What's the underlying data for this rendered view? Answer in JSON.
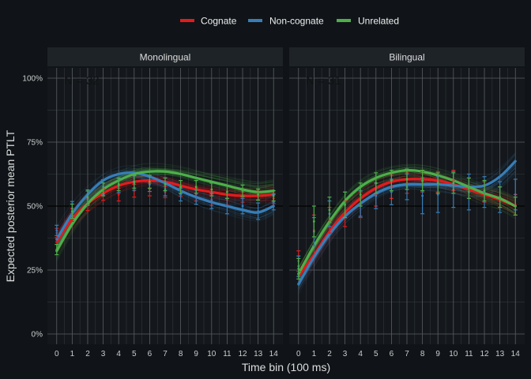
{
  "colors": {
    "background": "#101418",
    "panel": "#14181c",
    "strip": "#1e2328",
    "grid_major": "#595e63",
    "grid_minor": "#33383d",
    "reference_line": "#000000",
    "Cognate": "#e41a1c",
    "Non-cognate": "#377eb8",
    "Unrelated": "#4daf4a"
  },
  "chart_data": {
    "type": "line",
    "xlabel": "Time bin (100 ms)",
    "ylabel": "Expected posterior mean PTLT",
    "xlim": [
      -0.6,
      14.6
    ],
    "ylim": [
      -0.04,
      1.04
    ],
    "x_ticks": [
      0,
      1,
      2,
      3,
      4,
      5,
      6,
      7,
      8,
      9,
      10,
      11,
      12,
      13,
      14
    ],
    "y_ticks": [
      0,
      0.25,
      0.5,
      0.75,
      1.0
    ],
    "y_tick_labels": [
      "0%",
      "25%",
      "50%",
      "75%",
      "100%"
    ],
    "reference_y": 0.5,
    "grid": true,
    "legend": {
      "position": "top",
      "entries": [
        "Cognate",
        "Non-cognate",
        "Unrelated"
      ]
    },
    "facets": [
      {
        "strip": "Monolingual",
        "annotation": "N = 32",
        "series": [
          {
            "name": "Cognate",
            "fit": [
              0.36,
              0.45,
              0.51,
              0.55,
              0.58,
              0.595,
              0.6,
              0.595,
              0.58,
              0.565,
              0.555,
              0.545,
              0.54,
              0.54,
              0.545
            ],
            "points": [
              0.395,
              0.465,
              0.505,
              0.545,
              0.545,
              0.56,
              0.565,
              0.555,
              0.56,
              0.545,
              0.525,
              0.525,
              0.535,
              0.545,
              0.53
            ],
            "err": [
              0.018,
              0.025,
              0.022,
              0.022,
              0.025,
              0.025,
              0.025,
              0.022,
              0.022,
              0.025,
              0.022,
              0.022,
              0.02,
              0.02,
              0.02
            ]
          },
          {
            "name": "Non-cognate",
            "fit": [
              0.37,
              0.47,
              0.545,
              0.6,
              0.625,
              0.63,
              0.615,
              0.59,
              0.56,
              0.535,
              0.515,
              0.5,
              0.485,
              0.475,
              0.5
            ],
            "points": [
              0.405,
              0.49,
              0.53,
              0.575,
              0.58,
              0.59,
              0.585,
              0.565,
              0.545,
              0.535,
              0.52,
              0.5,
              0.5,
              0.48,
              0.515
            ],
            "err": [
              0.02,
              0.028,
              0.028,
              0.028,
              0.028,
              0.028,
              0.028,
              0.025,
              0.025,
              0.028,
              0.03,
              0.03,
              0.03,
              0.032,
              0.03
            ]
          },
          {
            "name": "Unrelated",
            "fit": [
              0.325,
              0.43,
              0.51,
              0.565,
              0.6,
              0.625,
              0.635,
              0.635,
              0.625,
              0.61,
              0.595,
              0.58,
              0.565,
              0.555,
              0.56
            ],
            "points": [
              0.33,
              0.48,
              0.535,
              0.565,
              0.585,
              0.595,
              0.595,
              0.585,
              0.575,
              0.575,
              0.565,
              0.555,
              0.56,
              0.545,
              0.54
            ],
            "err": [
              0.02,
              0.028,
              0.028,
              0.025,
              0.025,
              0.025,
              0.025,
              0.025,
              0.025,
              0.025,
              0.025,
              0.025,
              0.022,
              0.022,
              0.02
            ]
          }
        ]
      },
      {
        "strip": "Bilingual",
        "annotation": "N = 31",
        "series": [
          {
            "name": "Cognate",
            "fit": [
              0.225,
              0.31,
              0.4,
              0.475,
              0.53,
              0.57,
              0.595,
              0.605,
              0.605,
              0.6,
              0.585,
              0.565,
              0.545,
              0.525,
              0.5
            ],
            "points": [
              0.285,
              0.405,
              0.445,
              0.47,
              0.505,
              0.545,
              0.575,
              0.59,
              0.595,
              0.595,
              0.6,
              0.57,
              0.555,
              0.535,
              0.505
            ],
            "err": [
              0.04,
              0.06,
              0.05,
              0.05,
              0.05,
              0.045,
              0.045,
              0.04,
              0.04,
              0.04,
              0.04,
              0.04,
              0.04,
              0.04,
              0.04
            ]
          },
          {
            "name": "Non-cognate",
            "fit": [
              0.195,
              0.3,
              0.39,
              0.46,
              0.51,
              0.55,
              0.575,
              0.585,
              0.585,
              0.585,
              0.58,
              0.575,
              0.58,
              0.615,
              0.675
            ],
            "points": [
              0.265,
              0.4,
              0.47,
              0.505,
              0.51,
              0.54,
              0.555,
              0.575,
              0.54,
              0.545,
              0.565,
              0.555,
              0.555,
              0.535,
              0.545
            ],
            "err": [
              0.04,
              0.055,
              0.05,
              0.05,
              0.05,
              0.05,
              0.05,
              0.05,
              0.07,
              0.07,
              0.07,
              0.07,
              0.06,
              0.06,
              0.06
            ]
          },
          {
            "name": "Unrelated",
            "fit": [
              0.235,
              0.345,
              0.44,
              0.52,
              0.575,
              0.61,
              0.63,
              0.64,
              0.635,
              0.62,
              0.6,
              0.575,
              0.55,
              0.53,
              0.5
            ],
            "points": [
              0.255,
              0.44,
              0.485,
              0.505,
              0.545,
              0.59,
              0.6,
              0.605,
              0.6,
              0.59,
              0.59,
              0.57,
              0.56,
              0.535,
              0.5
            ],
            "err": [
              0.04,
              0.06,
              0.05,
              0.05,
              0.045,
              0.04,
              0.04,
              0.04,
              0.04,
              0.04,
              0.04,
              0.04,
              0.04,
              0.04,
              0.035
            ]
          }
        ]
      }
    ]
  }
}
